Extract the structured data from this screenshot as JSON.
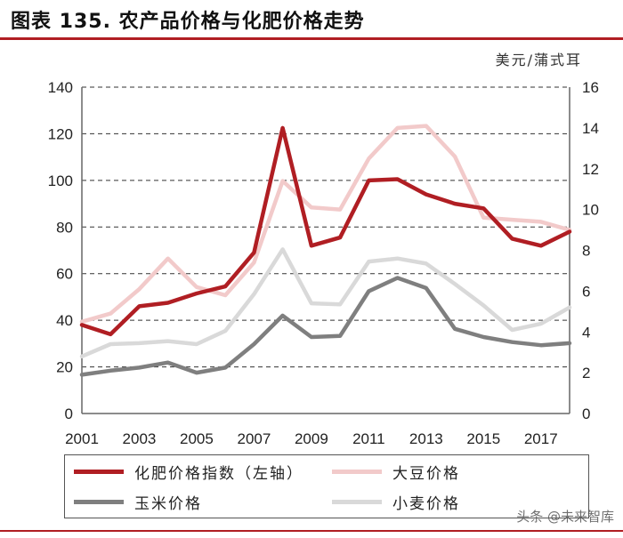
{
  "header": {
    "title": "图表 135. 农产品价格与化肥价格走势"
  },
  "unit_label": "美元/蒲式耳",
  "watermark": "头条 @未来智库",
  "colors": {
    "fertilizer": "#b01e23",
    "soybean": "#f2caca",
    "corn": "#7f7f7f",
    "wheat": "#d9d9d9",
    "grid": "#333333",
    "accent": "#b01e23"
  },
  "chart_data": {
    "type": "line",
    "x": [
      2001,
      2002,
      2003,
      2004,
      2005,
      2006,
      2007,
      2008,
      2009,
      2010,
      2011,
      2012,
      2013,
      2014,
      2015,
      2016,
      2017,
      2018
    ],
    "x_ticks": [
      "2001",
      "2003",
      "2005",
      "2007",
      "2009",
      "2011",
      "2013",
      "2015",
      "2017"
    ],
    "y_left_ticks": [
      "0",
      "20",
      "40",
      "60",
      "80",
      "100",
      "120",
      "140"
    ],
    "y_right_ticks": [
      "0",
      "2",
      "4",
      "6",
      "8",
      "10",
      "12",
      "14",
      "16"
    ],
    "ylim_left": [
      0,
      140
    ],
    "ylim_right": [
      0,
      16
    ],
    "grid": "horizontal dashed",
    "legend_position": "bottom",
    "series": [
      {
        "name": "化肥价格指数（左轴）",
        "axis": "left",
        "color": "#b01e23",
        "values": [
          38,
          34,
          46,
          47.5,
          51.5,
          54.5,
          69,
          122.5,
          72,
          75.5,
          100,
          100.5,
          94,
          90,
          88,
          75,
          72,
          78
        ]
      },
      {
        "name": "大豆价格",
        "axis": "right",
        "color": "#f2caca",
        "values": [
          4.5,
          4.9,
          6.1,
          7.6,
          6.2,
          5.8,
          7.4,
          11.4,
          10.1,
          10.0,
          12.5,
          14.0,
          14.1,
          12.6,
          9.6,
          9.5,
          9.4,
          9.0
        ]
      },
      {
        "name": "玉米价格",
        "axis": "right",
        "color": "#7f7f7f",
        "values": [
          1.9,
          2.1,
          2.25,
          2.5,
          2.0,
          2.25,
          3.4,
          4.8,
          3.75,
          3.8,
          6.0,
          6.65,
          6.15,
          4.15,
          3.75,
          3.5,
          3.35,
          3.45
        ]
      },
      {
        "name": "小麦价格",
        "axis": "right",
        "color": "#d9d9d9",
        "values": [
          2.8,
          3.4,
          3.45,
          3.55,
          3.4,
          4.05,
          5.85,
          8.05,
          5.4,
          5.35,
          7.45,
          7.6,
          7.35,
          6.35,
          5.3,
          4.1,
          4.4,
          5.2
        ]
      }
    ]
  }
}
